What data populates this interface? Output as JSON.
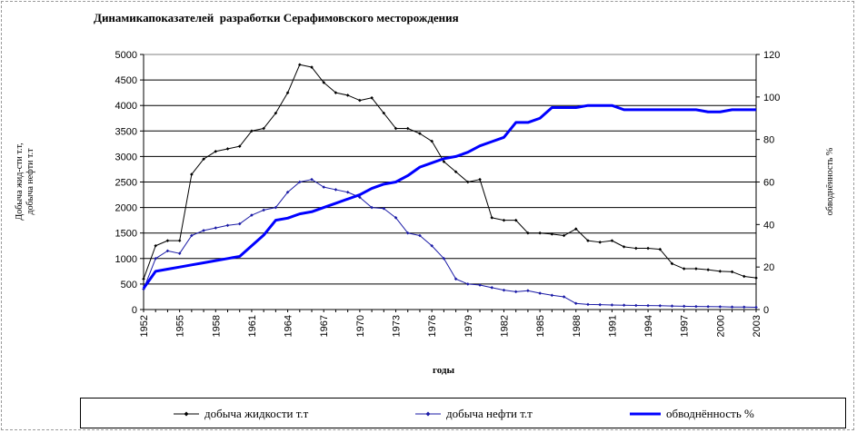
{
  "chart_data": {
    "type": "line",
    "title": "Динамикапоказателей  разработки Серафимовского месторождения",
    "xlabel": "годы",
    "ylabel_left": "Добыча жид-сти т.т, добыча нефти т.т",
    "ylabel_right": "обводнённость %",
    "xlim": [
      1952,
      2003
    ],
    "ylim_left": [
      0,
      5000
    ],
    "ylim_right": [
      0,
      120
    ],
    "x_ticks": [
      "1952",
      "1955",
      "1958",
      "1961",
      "1964",
      "1967",
      "1970",
      "1973",
      "1976",
      "1979",
      "1982",
      "1985",
      "1988",
      "1991",
      "1994",
      "1997",
      "2000",
      "2003"
    ],
    "y_left_ticks": [
      "0",
      "500",
      "1000",
      "1500",
      "2000",
      "2500",
      "3000",
      "3500",
      "4000",
      "4500",
      "5000"
    ],
    "y_right_ticks": [
      "0",
      "20",
      "40",
      "60",
      "80",
      "100",
      "120"
    ],
    "grid": true,
    "legend_position": "bottom",
    "x": [
      1952,
      1953,
      1954,
      1955,
      1956,
      1957,
      1958,
      1959,
      1960,
      1961,
      1962,
      1963,
      1964,
      1965,
      1966,
      1967,
      1968,
      1969,
      1970,
      1971,
      1972,
      1973,
      1974,
      1975,
      1976,
      1977,
      1978,
      1979,
      1980,
      1981,
      1982,
      1983,
      1984,
      1985,
      1986,
      1987,
      1988,
      1989,
      1990,
      1991,
      1992,
      1993,
      1994,
      1995,
      1996,
      1997,
      1998,
      1999,
      2000,
      2001,
      2002,
      2003
    ],
    "series": [
      {
        "name": "добыча жидкости т.т",
        "axis": "left",
        "color": "#000000",
        "values": [
          600,
          1250,
          1350,
          1350,
          2650,
          2950,
          3100,
          3150,
          3200,
          3500,
          3550,
          3850,
          4250,
          4800,
          4750,
          4450,
          4250,
          4200,
          4100,
          4150,
          3850,
          3550,
          3550,
          3450,
          3300,
          2900,
          2700,
          2500,
          2550,
          1800,
          1750,
          1750,
          1500,
          1500,
          1480,
          1450,
          1580,
          1350,
          1320,
          1350,
          1230,
          1200,
          1200,
          1180,
          900,
          800,
          800,
          780,
          750,
          740,
          650,
          620
        ]
      },
      {
        "name": "добыча нефти т.т",
        "axis": "left",
        "color": "#1a1aa6",
        "values": [
          400,
          1000,
          1150,
          1100,
          1450,
          1550,
          1600,
          1650,
          1680,
          1850,
          1950,
          2000,
          2300,
          2500,
          2550,
          2400,
          2350,
          2300,
          2200,
          2000,
          1980,
          1800,
          1500,
          1450,
          1250,
          1000,
          600,
          500,
          480,
          430,
          380,
          350,
          370,
          320,
          280,
          250,
          120,
          100,
          95,
          90,
          85,
          80,
          78,
          75,
          70,
          65,
          60,
          58,
          55,
          50,
          48,
          45
        ]
      },
      {
        "name": "обводнённость %",
        "axis": "right",
        "color": "#0000ff",
        "values": [
          10,
          18,
          19,
          20,
          21,
          22,
          23,
          24,
          25,
          30,
          35,
          42,
          43,
          45,
          46,
          48,
          50,
          52,
          54,
          57,
          59,
          60,
          63,
          67,
          69,
          71,
          72,
          74,
          77,
          79,
          81,
          88,
          88,
          90,
          95,
          95,
          95,
          96,
          96,
          96,
          94,
          94,
          94,
          94,
          94,
          94,
          94,
          93,
          93,
          94,
          94,
          94
        ]
      }
    ]
  }
}
